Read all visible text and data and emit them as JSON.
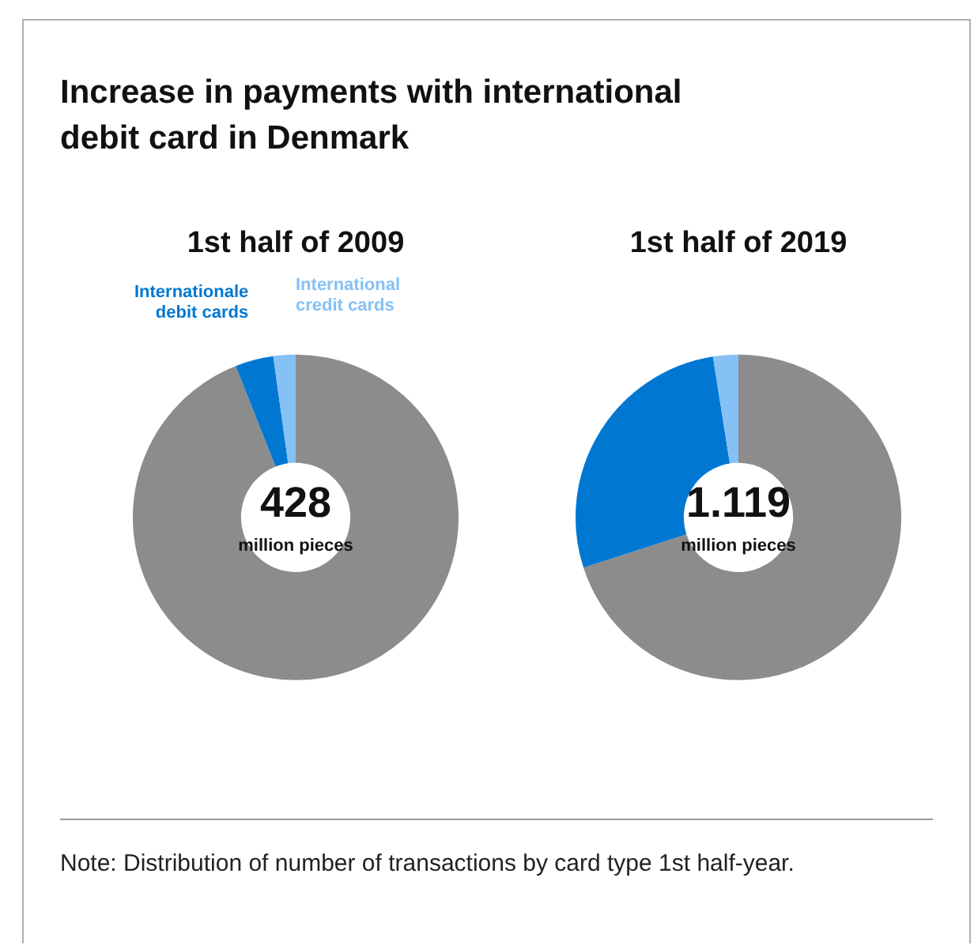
{
  "chart_data": [
    {
      "type": "donut",
      "title": "1st half of 2009",
      "categories": [
        null,
        "Internationale debit cards",
        "International credit cards"
      ],
      "values": [
        94,
        3.8,
        2.2
      ],
      "colors": [
        "#8c8c8c",
        "#0078d2",
        "#85c1f5"
      ],
      "legend": false,
      "annotations": [
        "Increase in payments with international debit card in Denmark",
        "428",
        "million pieces",
        "Note: Distribution of number of transactions by card type 1st half-year."
      ]
    },
    {
      "type": "donut",
      "title": "1st half of 2019",
      "categories": [
        null,
        null,
        null
      ],
      "values": [
        70,
        27.5,
        2.5
      ],
      "colors": [
        "#8c8c8c",
        "#0078d2",
        "#85c1f5"
      ],
      "legend": false,
      "annotations": [
        "1.119",
        "million pieces"
      ]
    }
  ]
}
